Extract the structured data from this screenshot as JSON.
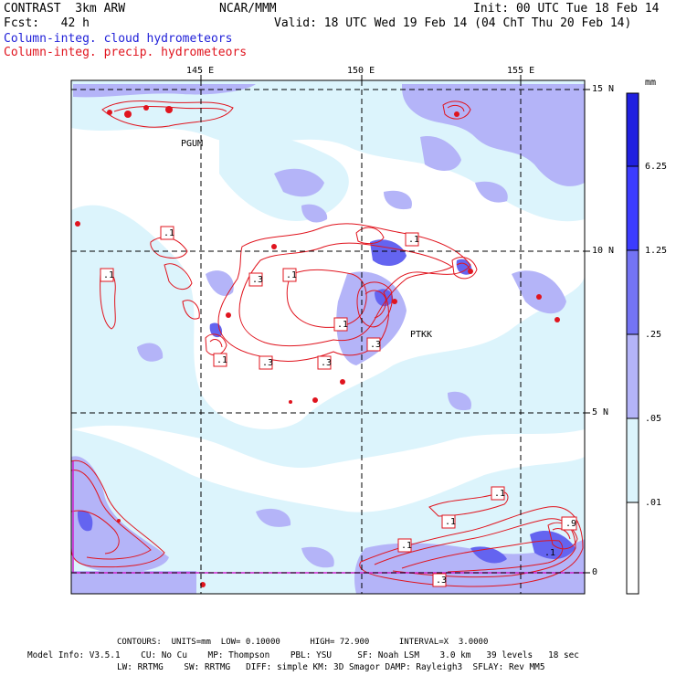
{
  "header": {
    "left_line1": "CONTRAST  3km ARW",
    "center_line1": "NCAR/MMM",
    "right_line1": "Init: 00 UTC Tue 18 Feb 14",
    "left_line2": "Fcst:   42 h",
    "right_line2": "Valid: 18 UTC Wed 19 Feb 14 (04 ChT Thu 20 Feb 14)",
    "field1": "Column-integ. cloud hydrometeors",
    "field2": "Column-integ. precip. hydrometeors"
  },
  "map": {
    "lon_labels": [
      "145 E",
      "150 E",
      "155 E"
    ],
    "lat_labels": [
      "15 N",
      "10 N",
      "5 N",
      "0"
    ],
    "stations": [
      "PGUM",
      "PTKK"
    ],
    "contour_labels": [
      ".1",
      ".1",
      ".3",
      ".1",
      ".3",
      ".1",
      ".1",
      ".3",
      ".3",
      ".1",
      ".1",
      ".1",
      ".1",
      ".1",
      ".3",
      ".9"
    ]
  },
  "colorbar": {
    "unit": "mm",
    "levels": [
      "6.25",
      "1.25",
      ".25",
      ".05",
      ".01"
    ],
    "colors": [
      "#2020e0",
      "#3c3cff",
      "#7474f4",
      "#b4b4f8",
      "#dcf4fc",
      "#ffffff"
    ]
  },
  "footer": {
    "contours": "CONTOURS:  UNITS=mm  LOW= 0.10000      HIGH= 72.900      INTERVAL=X  3.0000",
    "model_line1": "Model Info: V3.5.1    CU: No Cu    MP: Thompson    PBL: YSU     SF: Noah LSM    3.0 km   39 levels   18 sec",
    "model_line2": "LW: RRTMG    SW: RRTMG   DIFF: simple KM: 3D Smagor DAMP: Rayleigh3  SFLAY: Rev MM5"
  }
}
